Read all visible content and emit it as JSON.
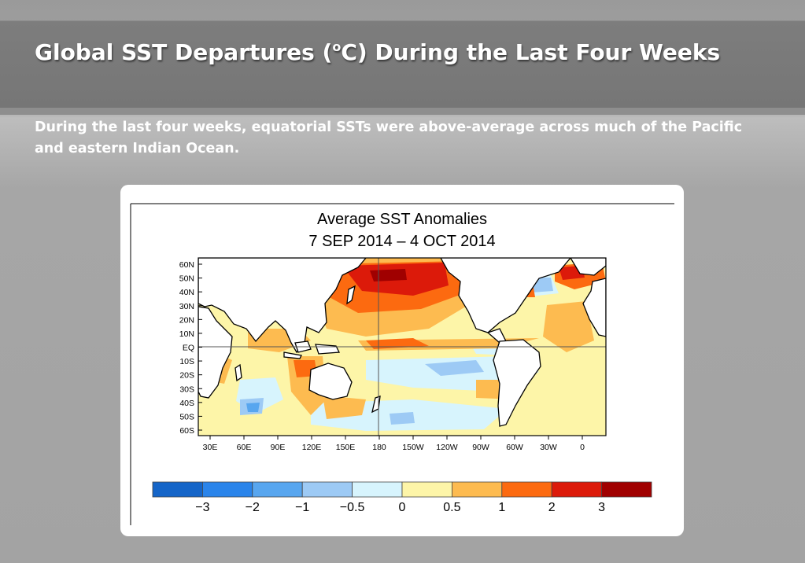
{
  "slide": {
    "title_prefix": "Global SST Departures (",
    "title_sup": "o",
    "title_suffix": "C) During the Last Four Weeks",
    "subtitle": "During the last four weeks, equatorial SSTs were above-average across much of the Pacific and eastern Indian Ocean."
  },
  "figure": {
    "title_line1": "Average SST Anomalies",
    "title_line2": "7 SEP 2014 – 4 OCT 2014",
    "lat_labels": [
      "60N",
      "50N",
      "40N",
      "30N",
      "20N",
      "10N",
      "EQ",
      "10S",
      "20S",
      "30S",
      "40S",
      "50S",
      "60S"
    ],
    "lon_labels": [
      "30E",
      "60E",
      "90E",
      "120E",
      "150E",
      "180",
      "150W",
      "120W",
      "90W",
      "60W",
      "30W",
      "0"
    ],
    "colorbar": {
      "colors": [
        "#1565c8",
        "#2a84ea",
        "#58a6ef",
        "#9dcaf5",
        "#d7f4fd",
        "#fdf5a8",
        "#fdbb50",
        "#fc6a10",
        "#dc1a0a",
        "#a00000"
      ],
      "labels": [
        "−3",
        "−2",
        "−1",
        "−0.5",
        "0",
        "0.5",
        "1",
        "2",
        "3"
      ]
    },
    "colors": {
      "land": "#ffffff",
      "coast": "#000000"
    }
  }
}
